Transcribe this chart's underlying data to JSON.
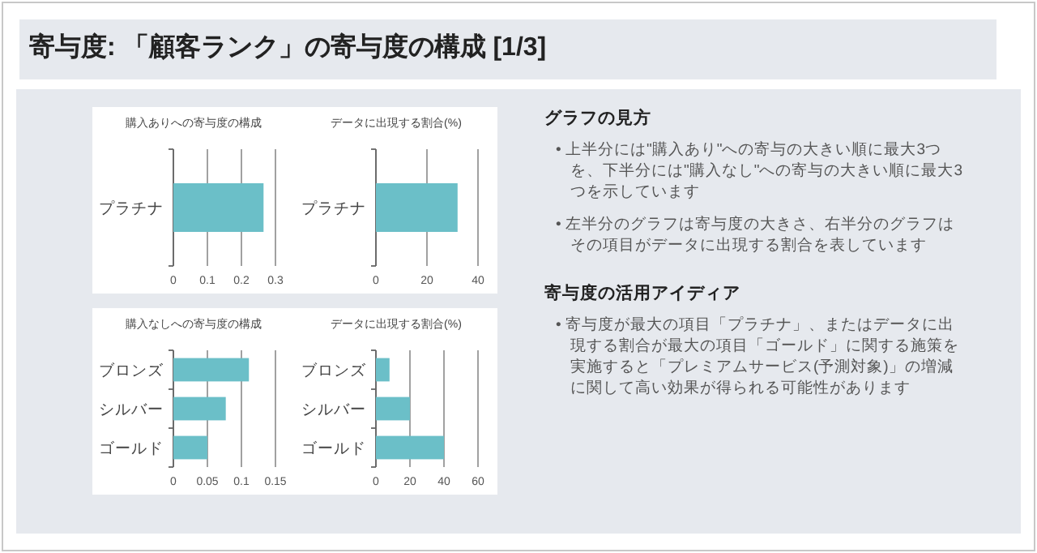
{
  "chart_data": [
    {
      "type": "other",
      "title": "寄与度: 「顧客ランク」の寄与度の構成 [1/3]"
    },
    {
      "type": "bar",
      "orientation": "horizontal",
      "title": "購入ありへの寄与度の構成",
      "categories": [
        "プラチナ"
      ],
      "values": [
        0.265
      ],
      "color": "#6bbfc8",
      "xlim": [
        0,
        0.3
      ],
      "xticks": [
        0,
        0.1,
        0.2,
        0.3
      ],
      "grid": "x"
    },
    {
      "type": "bar",
      "orientation": "horizontal",
      "title": "データに出現する割合(%)",
      "categories": [
        "プラチナ"
      ],
      "values": [
        32
      ],
      "color": "#6bbfc8",
      "xlim": [
        0,
        40
      ],
      "xticks": [
        0,
        20,
        40
      ],
      "grid": "x"
    },
    {
      "type": "bar",
      "orientation": "horizontal",
      "title": "購入なしへの寄与度の構成",
      "categories": [
        "ブロンズ",
        "シルバー",
        "ゴールド"
      ],
      "values": [
        0.111,
        0.077,
        0.05
      ],
      "color": "#6bbfc8",
      "xlim": [
        0,
        0.15
      ],
      "xticks": [
        0,
        0.05,
        0.1,
        0.15
      ],
      "grid": "x"
    },
    {
      "type": "bar",
      "orientation": "horizontal",
      "title": "データに出現する割合(%)",
      "categories": [
        "ブロンズ",
        "シルバー",
        "ゴールド"
      ],
      "values": [
        8,
        20,
        40
      ],
      "color": "#6bbfc8",
      "xlim": [
        0,
        60
      ],
      "xticks": [
        0,
        20,
        40,
        60
      ],
      "grid": "x"
    },
    {
      "type": "other",
      "title": "グラフの見方",
      "annotations": [
        "• 上半分には\"購入あり\"への寄与の大きい順に最大3つを、下半分には\"購入なし\"への寄与の大きい順に最大3つを示しています",
        "• 左半分のグラフは寄与度の大きさ、右半分のグラフはその項目がデータに出現する割合を表しています"
      ]
    },
    {
      "type": "other",
      "title": "寄与度の活用アイディア",
      "annotations": [
        "• 寄与度が最大の項目「プラチナ」、またはデータに出現する割合が最大の項目「ゴールド」に関する施策を実施すると「プレミアムサービス(予測対象)」の増減に関して高い効果が得られる可能性があります"
      ]
    }
  ]
}
